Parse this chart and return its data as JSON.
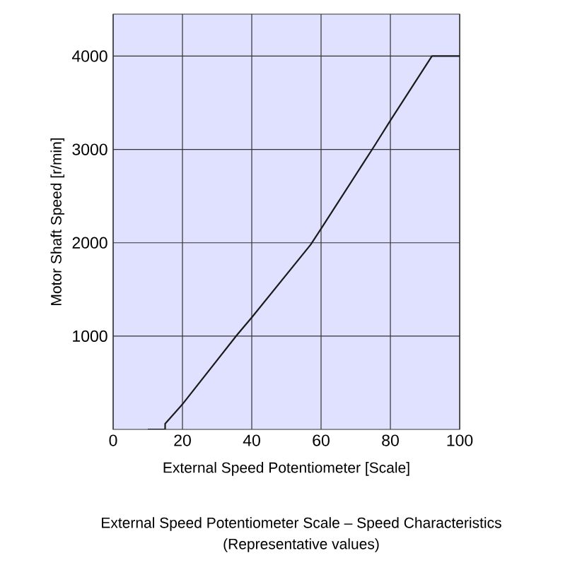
{
  "chart_data": {
    "type": "line",
    "xlabel": "External Speed Potentiometer [Scale]",
    "ylabel": "Motor Shaft Speed [r/min]",
    "annotations": [
      "External Speed Potentiometer Scale – Speed Characteristics",
      "(Representative values)"
    ],
    "x": [
      10,
      15,
      15,
      20,
      35.7,
      40,
      57,
      60,
      75.6,
      80,
      92,
      100
    ],
    "series": [
      {
        "color": "#1a1a1a",
        "values": [
          0,
          0,
          60,
          270,
          1010,
          1200,
          1980,
          2150,
          3050,
          3310,
          4000,
          4000
        ]
      }
    ],
    "xlim": [
      0,
      100
    ],
    "ylim": [
      0,
      4450
    ],
    "xticks": [
      0,
      20,
      40,
      60,
      80,
      100
    ],
    "yticks": [
      1000,
      2000,
      3000,
      4000
    ],
    "grid": true,
    "marker": "none",
    "line_style": "solid"
  }
}
